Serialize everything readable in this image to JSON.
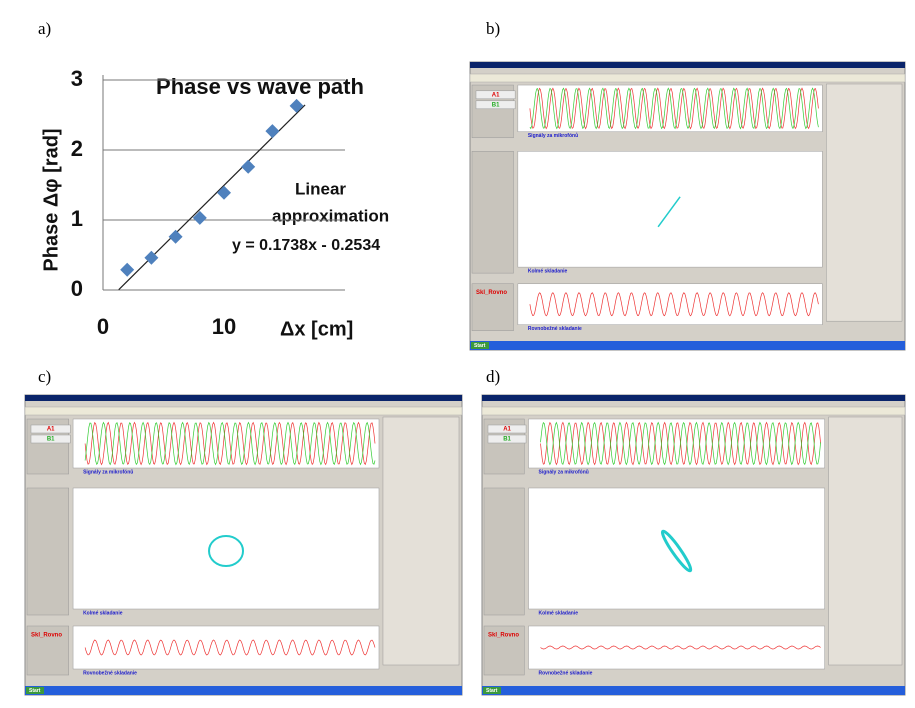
{
  "chart_data": {
    "type": "scatter",
    "title": "Phase vs wave path",
    "x_label": "Δx [cm]",
    "y_label": "Phase Δφ [rad]",
    "annotations": [
      "Linear",
      "approximation",
      "y = 0.1738x - 0.2534"
    ],
    "x": [
      2,
      4,
      6,
      8,
      10,
      12,
      14,
      16
    ],
    "values": [
      0.29,
      0.46,
      0.76,
      1.03,
      1.39,
      1.76,
      2.27,
      2.63
    ],
    "color": "#4f81bd",
    "trendline": true,
    "xlim": [
      0,
      20
    ],
    "xticks": [
      0,
      10
    ],
    "ylim": [
      0,
      3
    ],
    "yticks": [
      0,
      1,
      2,
      3
    ],
    "grid": true
  },
  "panel_labels": [
    "a)",
    "b)",
    "c)",
    "d)"
  ],
  "screenshots": [
    {
      "channels": [
        "A1",
        "B1"
      ],
      "panel_titles": [
        "Signály za mikrofónů",
        "Kolmé skladanie",
        "Rovnobežné skladanie"
      ],
      "side_label": "Skl_Rovno",
      "start": "Start"
    },
    {
      "channels": [
        "A1",
        "B1"
      ],
      "panel_titles": [
        "Signály za mikrofónů",
        "Kolmé skladanie",
        "Rovnobežné skladanie"
      ],
      "side_label": "Skl_Rovno",
      "start": "Start"
    },
    {
      "channels": [
        "A1",
        "B1"
      ],
      "panel_titles": [
        "Signály za mikrofónů",
        "Kolmé skladanie",
        "Rovnobežné skladanie"
      ],
      "side_label": "Skl_Rovno",
      "start": "Start"
    }
  ]
}
